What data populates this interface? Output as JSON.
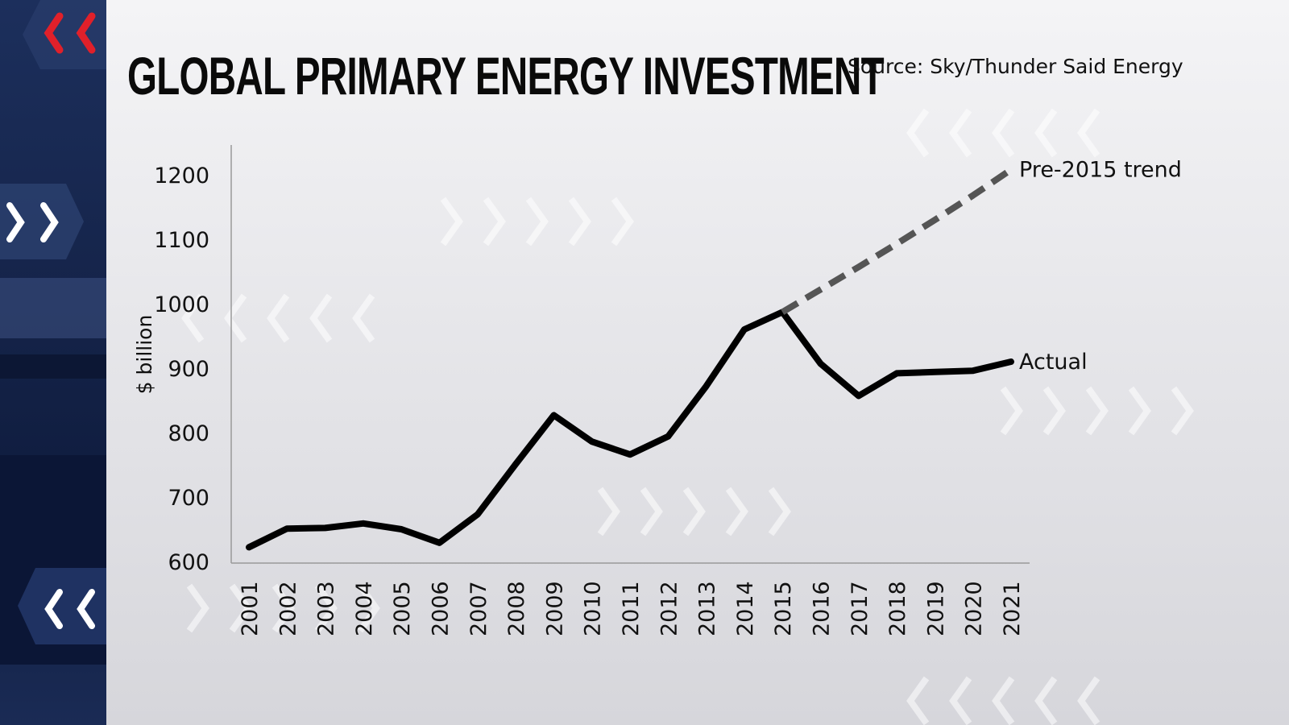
{
  "header": {
    "title": "GLOBAL PRIMARY ENERGY INVESTMENT",
    "source": "Source: Sky/Thunder Said Energy"
  },
  "colors": {
    "actual": "#000000",
    "trend": "#555555",
    "sidebar": "#15244a",
    "accent_red": "#e0202a"
  },
  "icons": [
    "double-chevron-left-icon",
    "double-chevron-right-icon"
  ],
  "chart_data": {
    "type": "line",
    "title": "GLOBAL PRIMARY ENERGY INVESTMENT",
    "xlabel": "",
    "ylabel": "$ billion",
    "ylim": [
      600,
      1250
    ],
    "yticks": [
      600,
      700,
      800,
      900,
      1000,
      1100,
      1200
    ],
    "categories": [
      "2001",
      "2002",
      "2003",
      "2004",
      "2005",
      "2006",
      "2007",
      "2008",
      "2009",
      "2010",
      "2011",
      "2012",
      "2013",
      "2014",
      "2015",
      "2016",
      "2017",
      "2018",
      "2019",
      "2020",
      "2021"
    ],
    "grid": false,
    "series": [
      {
        "name": "Actual",
        "style": "solid",
        "x": [
          "2001",
          "2002",
          "2003",
          "2004",
          "2005",
          "2006",
          "2007",
          "2008",
          "2009",
          "2010",
          "2011",
          "2012",
          "2013",
          "2014",
          "2015",
          "2016",
          "2017",
          "2018",
          "2019",
          "2020",
          "2021"
        ],
        "values": [
          622,
          651,
          652,
          659,
          650,
          629,
          673,
          751,
          827,
          786,
          766,
          794,
          872,
          960,
          987,
          907,
          857,
          892,
          894,
          896,
          910
        ]
      },
      {
        "name": "Pre-2015 trend",
        "style": "dashed",
        "x": [
          "2015",
          "2016",
          "2017",
          "2018",
          "2019",
          "2020",
          "2021"
        ],
        "values": [
          987,
          1022,
          1057,
          1093,
          1130,
          1168,
          1208
        ]
      }
    ]
  }
}
